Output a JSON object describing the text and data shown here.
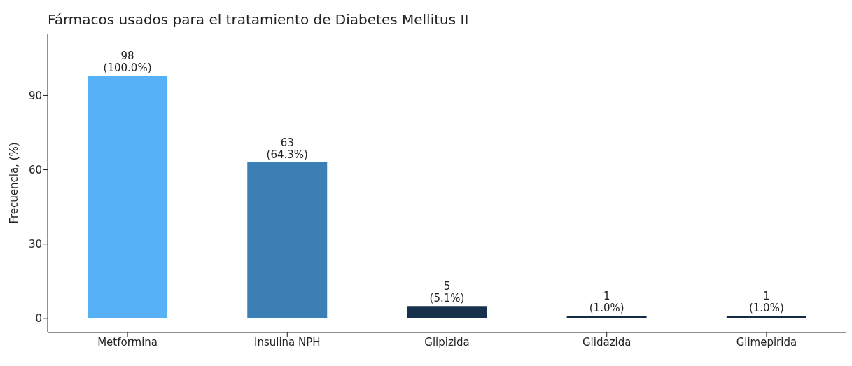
{
  "chart_data": {
    "type": "bar",
    "title": "Fármacos usados para el tratamiento de Diabetes Mellitus II",
    "ylabel": "Frecuencia, (%)",
    "categories": [
      "Metformina",
      "Insulina NPH",
      "Glipizida",
      "Glidazida",
      "Glimepirida"
    ],
    "values": [
      98,
      63,
      5,
      1,
      1
    ],
    "colors": [
      "#56b1f7",
      "#3b7fb5",
      "#17314d",
      "#132b43",
      "#132b43"
    ],
    "value_labels": [
      "98\n(100.0%)",
      "63\n(64.3%)",
      "5\n(5.1%)",
      "1\n(1.0%)",
      "1\n(1.0%)"
    ],
    "ylim": [
      -5.7,
      115
    ],
    "yticks": [
      0,
      30,
      60,
      90
    ],
    "grid": false,
    "legend": false
  }
}
